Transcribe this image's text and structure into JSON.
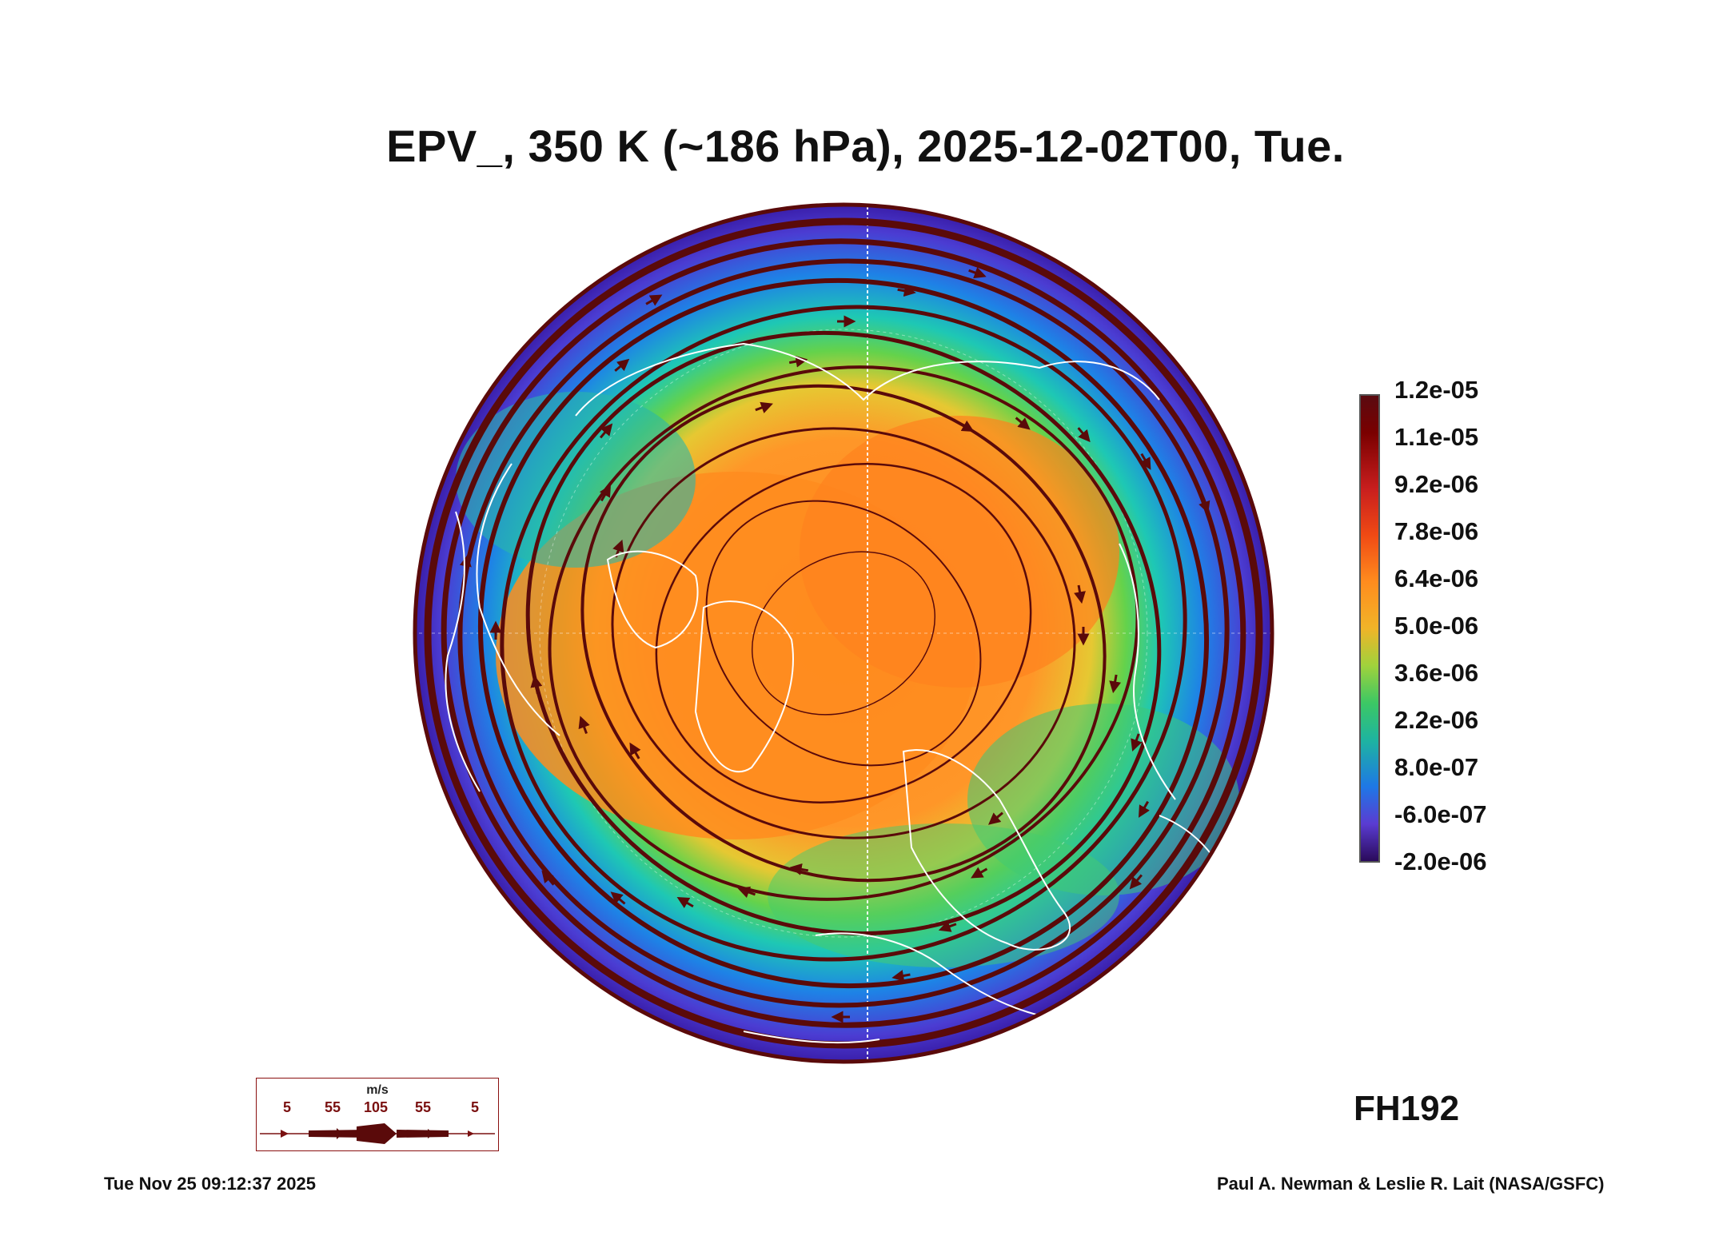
{
  "title": "EPV_, 350 K (~186 hPa), 2025-12-02T00, Tue.",
  "colorbar": {
    "labels": [
      "1.2e-05",
      "1.1e-05",
      "9.2e-06",
      "7.8e-06",
      "6.4e-06",
      "5.0e-06",
      "3.6e-06",
      "2.2e-06",
      "8.0e-07",
      "-6.0e-07",
      "-2.0e-06"
    ]
  },
  "forecast_hour": "FH192",
  "timestamp": "Tue Nov 25 09:12:37 2025",
  "credit": "Paul A. Newman & Leslie R. Lait (NASA/GSFC)",
  "wind_legend": {
    "unit": "m/s",
    "speeds": [
      "5",
      "55",
      "105",
      "55",
      "5"
    ]
  },
  "colors": {
    "streamline": "#5a0a0a",
    "coastline": "#ffffff",
    "legend_text": "#7a1010"
  }
}
